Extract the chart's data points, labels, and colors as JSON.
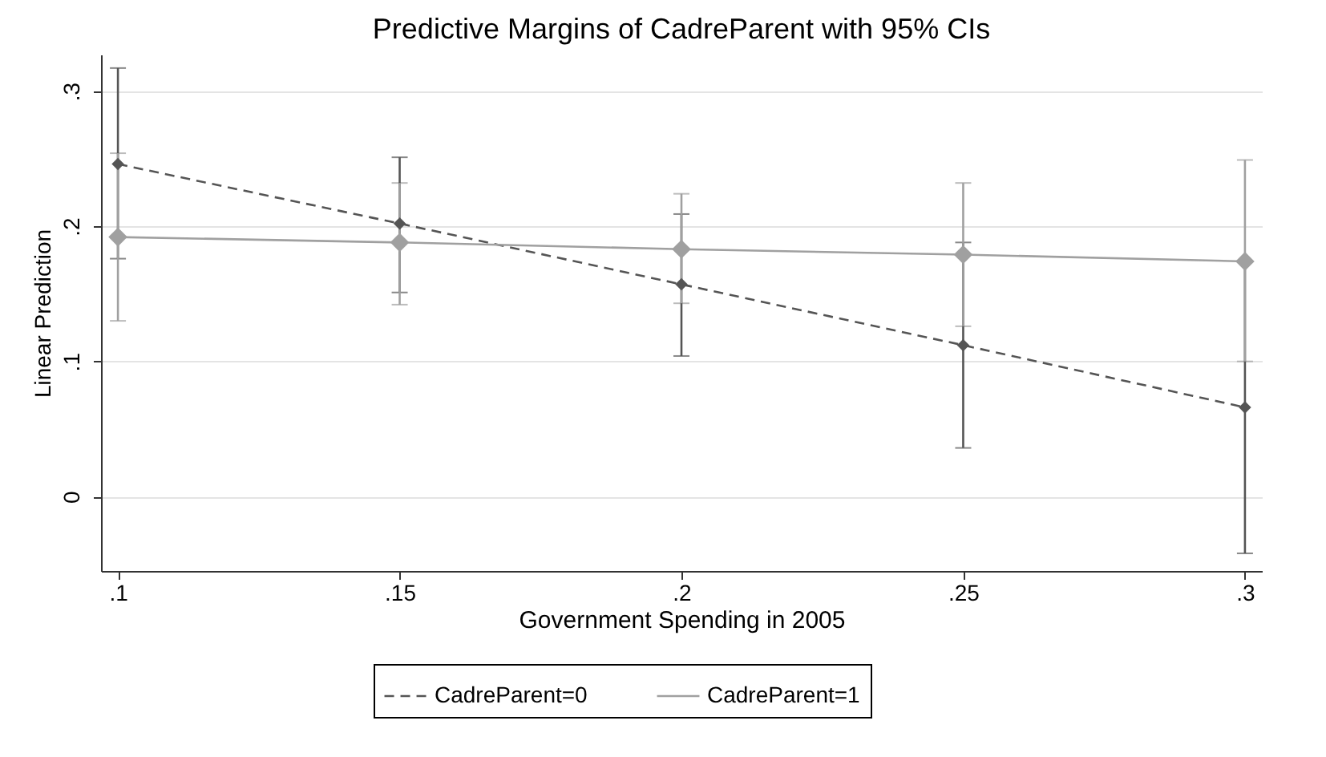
{
  "chart_data": {
    "type": "line",
    "title": "Predictive Margins of CadreParent with 95% CIs",
    "xlabel": "Government Spending in 2005",
    "ylabel": "Linear Prediction",
    "x": [
      0.1,
      0.15,
      0.2,
      0.25,
      0.3
    ],
    "series": [
      {
        "name": "CadreParent=0",
        "color": "#555555",
        "line_style": "dashed",
        "values": [
          0.246,
          0.202,
          0.157,
          0.112,
          0.066
        ],
        "errors": [
          [
            0.176,
            0.317
          ],
          [
            0.151,
            0.251
          ],
          [
            0.104,
            0.209
          ],
          [
            0.036,
            0.188
          ],
          [
            -0.042,
            0.174
          ]
        ]
      },
      {
        "name": "CadreParent=1",
        "color": "#a0a0a0",
        "line_style": "solid",
        "values": [
          0.192,
          0.188,
          0.183,
          0.179,
          0.174
        ],
        "errors": [
          [
            0.13,
            0.254
          ],
          [
            0.142,
            0.232
          ],
          [
            0.143,
            0.224
          ],
          [
            0.126,
            0.232
          ],
          [
            0.1,
            0.249
          ]
        ]
      }
    ],
    "xlim": [
      0.097,
      0.303
    ],
    "xticks": [
      {
        "value": 0.1,
        "label": ".1"
      },
      {
        "value": 0.15,
        "label": ".15"
      },
      {
        "value": 0.2,
        "label": ".2"
      },
      {
        "value": 0.25,
        "label": ".25"
      },
      {
        "value": 0.3,
        "label": ".3"
      }
    ],
    "ylim": [
      -0.055,
      0.327
    ],
    "yticks": [
      0,
      {
        "value": 0.1,
        "label": ".1"
      },
      {
        "value": 0.2,
        "label": ".2"
      },
      {
        "value": 0.3,
        "label": ".3"
      }
    ],
    "grid": "y",
    "legend": "bottom",
    "marker": "diamond"
  }
}
